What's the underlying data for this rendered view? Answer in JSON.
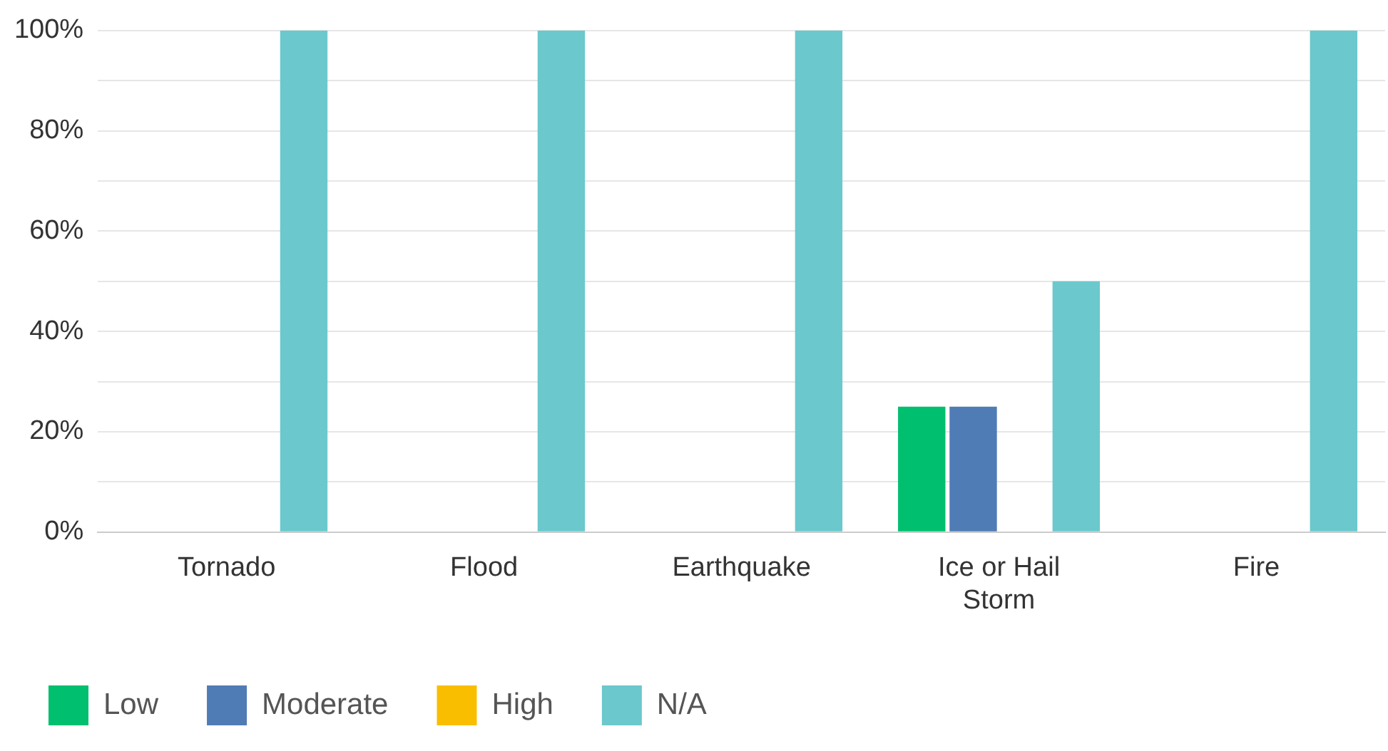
{
  "chart_data": {
    "type": "bar",
    "categories": [
      "Tornado",
      "Flood",
      "Earthquake",
      "Ice or Hail Storm",
      "Fire"
    ],
    "series": [
      {
        "name": "Low",
        "color": "#00bf6f",
        "values": [
          0,
          0,
          0,
          25,
          0
        ]
      },
      {
        "name": "Moderate",
        "color": "#507cb6",
        "values": [
          0,
          0,
          0,
          25,
          0
        ]
      },
      {
        "name": "High",
        "color": "#f9be00",
        "values": [
          0,
          0,
          0,
          0,
          0
        ]
      },
      {
        "name": "N/A",
        "color": "#6bc8cd",
        "values": [
          100,
          100,
          100,
          50,
          100
        ]
      }
    ],
    "ylim": [
      0,
      100
    ],
    "yticks": [
      {
        "value": 0,
        "label": "0%"
      },
      {
        "value": 10,
        "label": null
      },
      {
        "value": 20,
        "label": "20%"
      },
      {
        "value": 30,
        "label": null
      },
      {
        "value": 40,
        "label": "40%"
      },
      {
        "value": 50,
        "label": null
      },
      {
        "value": 60,
        "label": "60%"
      },
      {
        "value": 70,
        "label": null
      },
      {
        "value": 80,
        "label": "80%"
      },
      {
        "value": 90,
        "label": null
      },
      {
        "value": 100,
        "label": "100%"
      }
    ],
    "grid": "y",
    "legend": "bottom left"
  }
}
